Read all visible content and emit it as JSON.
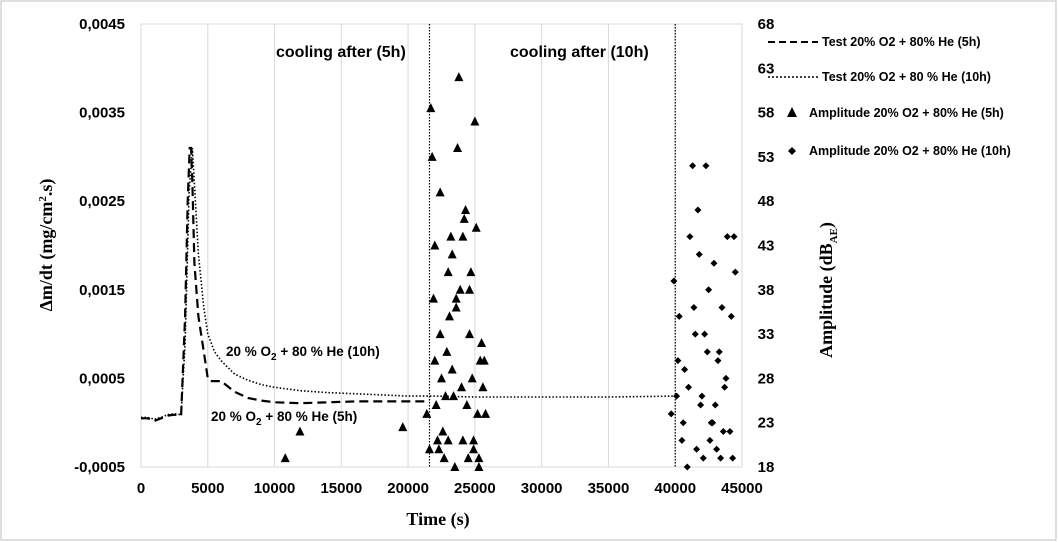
{
  "chart_data": {
    "type": "line",
    "xlabel": "Time  (s)",
    "ylabel_left": "Δm/dt  (mg/cm².s)",
    "ylabel_right": "Amplitude (dB_AE)",
    "xlim": [
      0,
      45000
    ],
    "ylim_left": [
      -0.0005,
      0.0045
    ],
    "ylim_right": [
      18,
      68
    ],
    "x_ticks": [
      "0",
      "5000",
      "10000",
      "15000",
      "20000",
      "25000",
      "30000",
      "35000",
      "40000",
      "45000"
    ],
    "y_left_ticks": [
      "-0,0005",
      "0,0005",
      "0,0015",
      "0,0025",
      "0,0035",
      "0,0045"
    ],
    "y_right_ticks": [
      "18",
      "23",
      "28",
      "33",
      "38",
      "43",
      "48",
      "53",
      "58",
      "63",
      "68"
    ],
    "grid": "vertical",
    "legend_position": "right",
    "annotations": [
      {
        "text": "cooling after (5h)",
        "x": 21600
      },
      {
        "text": "cooling after (10h)",
        "x": 40000
      }
    ],
    "curve_labels": [
      {
        "text_main": "20 % O",
        "sub": "2",
        "text_rest": " + 80 % He (10h)"
      },
      {
        "text_main": "20 % O",
        "sub": "2",
        "text_rest": " + 80 % He (5h)"
      }
    ],
    "series": [
      {
        "name": "Test 20% O2 + 80% He (5h)",
        "style": "dashed",
        "axis": "left",
        "x": [
          0,
          500,
          1000,
          1500,
          2000,
          2500,
          3000,
          3300,
          3500,
          3650,
          3750,
          3850,
          4000,
          4300,
          4700,
          5000,
          5300,
          6000,
          7000,
          8000,
          9000,
          10000,
          12000,
          14000,
          16000,
          18000,
          20000,
          21600
        ],
        "y": [
          5e-05,
          5e-05,
          2e-05,
          5e-05,
          8e-05,
          9e-05,
          8e-05,
          0.0012,
          0.0025,
          0.0031,
          0.0031,
          0.0027,
          0.0018,
          0.0012,
          0.0008,
          0.0005,
          0.00047,
          0.00047,
          0.00035,
          0.00028,
          0.00025,
          0.00023,
          0.00022,
          0.00023,
          0.00024,
          0.00024,
          0.00024,
          0.00024
        ]
      },
      {
        "name": "Test 20% O2 + 80 % He (10h)",
        "style": "dotted",
        "axis": "left",
        "x": [
          0,
          500,
          1000,
          1500,
          2000,
          2500,
          3000,
          3300,
          3600,
          3850,
          4000,
          4300,
          4700,
          5000,
          5500,
          6000,
          7000,
          8000,
          9000,
          10000,
          12000,
          14000,
          17000,
          20000,
          22000,
          25000,
          30000,
          35000,
          40000
        ],
        "y": [
          6e-05,
          6e-05,
          4e-05,
          6e-05,
          9e-05,
          0.0001,
          9e-05,
          0.0009,
          0.0026,
          0.0031,
          0.0027,
          0.0019,
          0.0013,
          0.001,
          0.0008,
          0.0007,
          0.00055,
          0.00048,
          0.00043,
          0.0004,
          0.00036,
          0.00034,
          0.00032,
          0.0003,
          0.0003,
          0.00029,
          0.00029,
          0.00029,
          0.0003
        ]
      },
      {
        "name": "Amplitude 20% O2 + 80% He (5h)",
        "style": "triangle",
        "axis": "right",
        "x": [
          10800,
          11900,
          19600,
          21400,
          21600,
          21700,
          21800,
          21900,
          22000,
          22100,
          22200,
          22300,
          22400,
          22500,
          22600,
          22700,
          22800,
          22900,
          23000,
          23100,
          23200,
          23300,
          23400,
          23500,
          23600,
          23700,
          23800,
          23900,
          24000,
          24100,
          24200,
          24300,
          24400,
          24500,
          24600,
          24700,
          24800,
          24900,
          25000,
          25100,
          25200,
          25300,
          25400,
          25500,
          25600,
          25700,
          25800,
          22000,
          23300,
          23600,
          24100,
          24900,
          25300,
          22400,
          23000,
          24600
        ],
        "y": [
          19,
          22,
          22.5,
          24,
          20,
          58.5,
          53,
          37,
          30,
          25,
          21,
          20,
          33,
          28,
          22,
          19,
          26,
          31,
          21,
          35,
          44,
          42,
          26,
          18,
          37,
          54,
          62,
          38,
          27,
          21,
          46,
          47,
          25,
          19,
          38,
          40,
          28,
          20,
          57,
          45,
          24,
          19,
          30,
          32,
          27,
          30,
          24,
          43,
          29,
          36,
          44,
          21,
          18,
          49,
          40,
          33
        ]
      },
      {
        "name": "Amplitude 20% O2 + 80% He (10h)",
        "style": "diamond",
        "axis": "right",
        "x": [
          39700,
          39900,
          40100,
          40300,
          40500,
          40700,
          40900,
          41100,
          41300,
          41500,
          41700,
          41900,
          42100,
          42300,
          42500,
          42700,
          42900,
          43100,
          43300,
          43500,
          43700,
          43900,
          44100,
          44300,
          44500,
          40200,
          40600,
          41000,
          41400,
          41800,
          42200,
          42600,
          43000,
          43400,
          43800,
          44200,
          44400,
          41600,
          42000,
          42400,
          42800,
          43200,
          43600
        ],
        "y": [
          24,
          39,
          26,
          35,
          21,
          29,
          18,
          44,
          52,
          33,
          47,
          25,
          19,
          52,
          38,
          23,
          41,
          20,
          31,
          36,
          27,
          44,
          22,
          19,
          40,
          30,
          23,
          27,
          36,
          42,
          33,
          21,
          25,
          19,
          28,
          35,
          44,
          20,
          26,
          31,
          23,
          30,
          22
        ]
      }
    ]
  }
}
